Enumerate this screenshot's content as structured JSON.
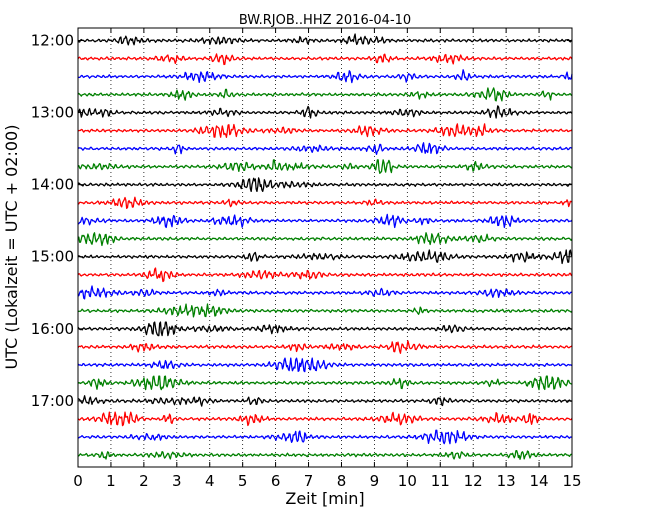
{
  "chart_data": {
    "type": "line",
    "title": "BW.RJOB..HHZ 2016-04-10",
    "xlabel": "Zeit  [min]",
    "ylabel": "UTC (Lokalzeit = UTC + 02:00)",
    "xlim": [
      0,
      15
    ],
    "x_ticks": [
      "0",
      "1",
      "2",
      "3",
      "4",
      "5",
      "6",
      "7",
      "8",
      "9",
      "10",
      "11",
      "12",
      "13",
      "14",
      "15"
    ],
    "y_tick_labels": [
      "12:00",
      "13:00",
      "14:00",
      "15:00",
      "16:00",
      "17:00"
    ],
    "traces_per_hour": 4,
    "trace_count": 24,
    "trace_colors": [
      "#000000",
      "#ff0000",
      "#0000ff",
      "#008000"
    ],
    "grid": "vertical-dotted",
    "samples_per_trace": 600
  }
}
